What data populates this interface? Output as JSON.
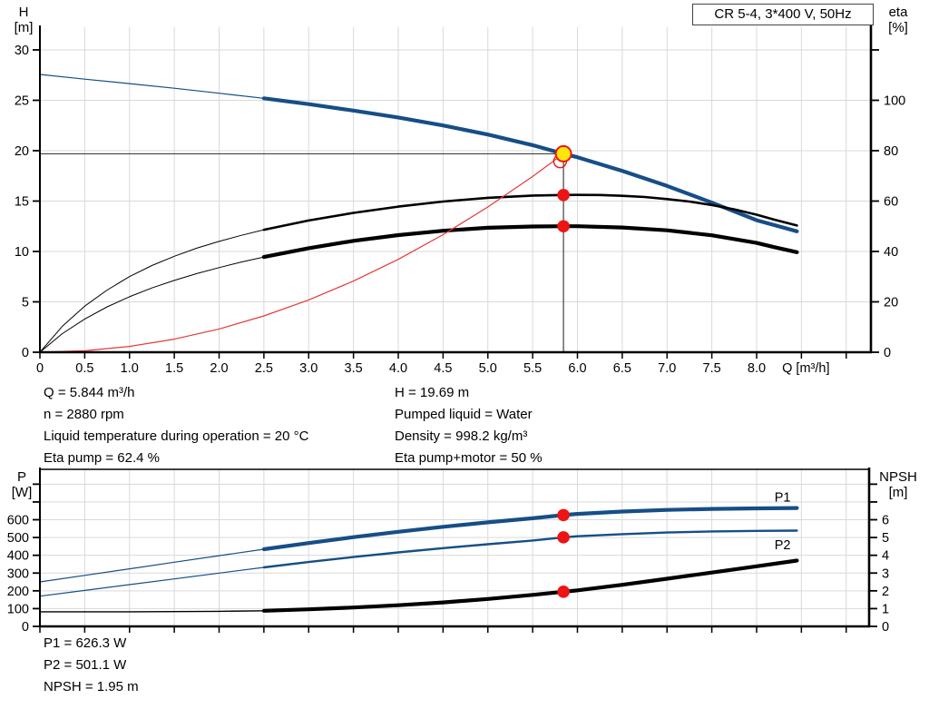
{
  "title_box": "CR 5-4, 3*400 V, 50Hz",
  "colors": {
    "blue": "#164e87",
    "black": "#000000",
    "red": "#ee1414",
    "red_curve": "#e63939",
    "yellow": "#ffe60a",
    "grid": "#d9d9d9",
    "crosshair": "#404040",
    "axis": "#000000"
  },
  "info_top_left": {
    "row1": "Q = 5.844 m³/h",
    "row2": "n = 2880 rpm",
    "row3": "Liquid temperature during operation = 20 °C",
    "row4": "Eta pump = 62.4 %"
  },
  "info_top_right": {
    "row1": "H = 19.69 m",
    "row2": "Pumped liquid = Water",
    "row3": "Density = 998.2 kg/m³",
    "row4": "Eta pump+motor = 50 %"
  },
  "info_bottom": {
    "row1": "P1 = 626.3 W",
    "row2": "P2 = 501.1 W",
    "row3": "NPSH = 1.95 m"
  },
  "chart_data": [
    {
      "type": "line",
      "title": "CR 5-4, 3*400 V, 50Hz",
      "xlabel": "Q [m³/h]",
      "ylabel_left": [
        "H",
        "[m]"
      ],
      "ylabel_right": [
        "eta",
        "[%]"
      ],
      "xlim": [
        0,
        9.276
      ],
      "ylim_left": [
        0,
        32.25
      ],
      "ylim_right": [
        0,
        129
      ],
      "x_ticks": {
        "step": 0.5,
        "max": 9.0,
        "labeled_until": 8.0,
        "show_labels": true
      },
      "left_ticks": [
        0,
        5,
        10,
        15,
        20,
        25,
        30
      ],
      "left_ticks_unlabeled": [],
      "right_ticks": [
        0,
        20,
        40,
        60,
        80,
        100
      ],
      "right_ticks_unlabeled": [
        120
      ],
      "grid": true,
      "crosshair": {
        "q": 5.844,
        "h": 19.69
      },
      "series": [
        {
          "name": "H-curve-thin",
          "axis": "left",
          "color": "blue",
          "width": 1.2,
          "points": [
            [
              0,
              27.57
            ],
            [
              0.5,
              27.1
            ],
            [
              1,
              26.66
            ],
            [
              1.5,
              26.2
            ],
            [
              2,
              25.7
            ],
            [
              2.5,
              25.2
            ]
          ]
        },
        {
          "name": "H-curve",
          "axis": "left",
          "color": "blue",
          "width": 4.2,
          "points": [
            [
              2.5,
              25.2
            ],
            [
              3,
              24.62
            ],
            [
              3.5,
              23.98
            ],
            [
              4,
              23.3
            ],
            [
              4.5,
              22.5
            ],
            [
              5,
              21.6
            ],
            [
              5.5,
              20.55
            ],
            [
              5.844,
              19.69
            ],
            [
              6,
              19.35
            ],
            [
              6.5,
              18.0
            ],
            [
              7,
              16.5
            ],
            [
              7.5,
              14.85
            ],
            [
              8,
              13.1
            ],
            [
              8.45,
              12.0
            ]
          ]
        },
        {
          "name": "eta-pump-curve-thin",
          "axis": "right",
          "color": "black",
          "width": 1,
          "points": [
            [
              0,
              0
            ],
            [
              0.25,
              10.3
            ],
            [
              0.5,
              18.3
            ],
            [
              0.75,
              24.7
            ],
            [
              1,
              30
            ],
            [
              1.25,
              34.4
            ],
            [
              1.5,
              38.1
            ],
            [
              1.75,
              41.3
            ],
            [
              2,
              44
            ],
            [
              2.25,
              46.4
            ],
            [
              2.5,
              48.6
            ]
          ]
        },
        {
          "name": "eta-pump-curve",
          "axis": "right",
          "color": "black",
          "width": 2.6,
          "points": [
            [
              2.5,
              48.6
            ],
            [
              3,
              52.3
            ],
            [
              3.5,
              55.3
            ],
            [
              4,
              57.8
            ],
            [
              4.5,
              59.8
            ],
            [
              5,
              61.3
            ],
            [
              5.5,
              62.2
            ],
            [
              5.844,
              62.4
            ],
            [
              6,
              62.45
            ],
            [
              6.25,
              62.4
            ],
            [
              6.5,
              62.1
            ],
            [
              6.75,
              61.6
            ],
            [
              7,
              60.8
            ],
            [
              7.25,
              59.8
            ],
            [
              7.5,
              58.4
            ],
            [
              7.75,
              56.7
            ],
            [
              8,
              54.6
            ],
            [
              8.2,
              52.6
            ],
            [
              8.45,
              50.3
            ]
          ]
        },
        {
          "name": "eta-pump-motor-curve-thin",
          "axis": "right",
          "color": "black",
          "width": 1,
          "points": [
            [
              0,
              0
            ],
            [
              0.25,
              7.4
            ],
            [
              0.5,
              13.2
            ],
            [
              0.75,
              18
            ],
            [
              1,
              22
            ],
            [
              1.25,
              25.5
            ],
            [
              1.5,
              28.5
            ],
            [
              1.75,
              31.2
            ],
            [
              2,
              33.6
            ],
            [
              2.25,
              35.8
            ],
            [
              2.5,
              37.8
            ]
          ]
        },
        {
          "name": "eta-pump-motor-curve",
          "axis": "right",
          "color": "black",
          "width": 4.2,
          "points": [
            [
              2.5,
              37.8
            ],
            [
              3,
              41.3
            ],
            [
              3.5,
              44.2
            ],
            [
              4,
              46.5
            ],
            [
              4.5,
              48.2
            ],
            [
              5,
              49.4
            ],
            [
              5.5,
              49.9
            ],
            [
              5.844,
              50
            ],
            [
              6,
              50
            ],
            [
              6.5,
              49.5
            ],
            [
              7,
              48.4
            ],
            [
              7.5,
              46.4
            ],
            [
              8,
              43.4
            ],
            [
              8.2,
              41.7
            ],
            [
              8.45,
              39.7
            ]
          ]
        },
        {
          "name": "system-curve",
          "axis": "left",
          "color": "red_curve",
          "width": 1.2,
          "points": [
            [
              0,
              0
            ],
            [
              0.5,
              0.14
            ],
            [
              1,
              0.58
            ],
            [
              1.5,
              1.3
            ],
            [
              2,
              2.31
            ],
            [
              2.5,
              3.6
            ],
            [
              3,
              5.19
            ],
            [
              3.5,
              7.06
            ],
            [
              4,
              9.22
            ],
            [
              4.5,
              11.67
            ],
            [
              5,
              14.41
            ],
            [
              5.5,
              17.44
            ],
            [
              5.844,
              19.69
            ]
          ]
        }
      ],
      "markers": [
        {
          "name": "duty-point-requested",
          "axis": "left",
          "q": 5.806,
          "v": 18.95,
          "r": 7,
          "fill": "none",
          "stroke": "red",
          "sw": 1.4,
          "interactable": true
        },
        {
          "name": "duty-point",
          "axis": "left",
          "q": 5.844,
          "v": 19.69,
          "r": 8.5,
          "fill": "yellow",
          "stroke": "red",
          "sw": 2,
          "interactable": true
        },
        {
          "name": "eta-pump-dot",
          "axis": "right",
          "q": 5.844,
          "v": 62.4,
          "r": 6.8,
          "fill": "red",
          "stroke": "none",
          "sw": 0,
          "interactable": false
        },
        {
          "name": "eta-pump-motor-dot",
          "axis": "right",
          "q": 5.844,
          "v": 50,
          "r": 6.8,
          "fill": "red",
          "stroke": "none",
          "sw": 0,
          "interactable": false
        }
      ],
      "labels": []
    },
    {
      "type": "line",
      "title": "",
      "xlabel": "",
      "ylabel_left": [
        "P",
        "[W]"
      ],
      "ylabel_right": [
        "NPSH",
        "[m]"
      ],
      "xlim": [
        0,
        9.256
      ],
      "ylim_left": [
        0,
        883.5
      ],
      "ylim_right": [
        0,
        8.835
      ],
      "x_ticks": {
        "step": 0.5,
        "max": 9.0,
        "labeled_until": -1,
        "show_labels": false
      },
      "left_ticks": [
        0,
        100,
        200,
        300,
        400,
        500,
        600
      ],
      "left_ticks_unlabeled": [
        700,
        800
      ],
      "right_ticks": [
        0,
        1,
        2,
        3,
        4,
        5,
        6
      ],
      "right_ticks_unlabeled": [
        7,
        8
      ],
      "grid": true,
      "crosshair": null,
      "series": [
        {
          "name": "P1-curve-thin",
          "axis": "left",
          "color": "blue",
          "width": 1.2,
          "points": [
            [
              0,
              250
            ],
            [
              0.5,
              287
            ],
            [
              1,
              324
            ],
            [
              1.5,
              361
            ],
            [
              2,
              398
            ],
            [
              2.5,
              434
            ]
          ]
        },
        {
          "name": "P1-curve",
          "axis": "left",
          "color": "blue",
          "width": 4.2,
          "points": [
            [
              2.5,
              434
            ],
            [
              3,
              469
            ],
            [
              3.5,
              502
            ],
            [
              4,
              532
            ],
            [
              4.5,
              560
            ],
            [
              5,
              585
            ],
            [
              5.5,
              608
            ],
            [
              5.844,
              626.3
            ],
            [
              6,
              633
            ],
            [
              6.5,
              646
            ],
            [
              7,
              655
            ],
            [
              7.5,
              661
            ],
            [
              8,
              664
            ],
            [
              8.45,
              666
            ]
          ]
        },
        {
          "name": "P2-curve-thin",
          "axis": "left",
          "color": "blue",
          "width": 1.2,
          "points": [
            [
              0,
              170
            ],
            [
              0.5,
              202
            ],
            [
              1,
              235
            ],
            [
              1.5,
              267
            ],
            [
              2,
              300
            ],
            [
              2.5,
              332
            ]
          ]
        },
        {
          "name": "P2-curve",
          "axis": "left",
          "color": "blue",
          "width": 2.4,
          "points": [
            [
              2.5,
              332
            ],
            [
              3,
              362
            ],
            [
              3.5,
              390
            ],
            [
              4,
              416
            ],
            [
              4.5,
              440
            ],
            [
              5,
              462
            ],
            [
              5.5,
              483
            ],
            [
              5.844,
              501.1
            ],
            [
              6,
              507
            ],
            [
              6.5,
              519
            ],
            [
              7,
              528
            ],
            [
              7.5,
              534
            ],
            [
              8,
              537
            ],
            [
              8.45,
              539
            ]
          ]
        },
        {
          "name": "NPSH-curve-thin",
          "axis": "right",
          "color": "black",
          "width": 1.4,
          "points": [
            [
              0,
              0.82
            ],
            [
              0.5,
              0.82
            ],
            [
              1,
              0.82
            ],
            [
              1.5,
              0.83
            ],
            [
              2,
              0.85
            ],
            [
              2.5,
              0.88
            ]
          ]
        },
        {
          "name": "NPSH-curve",
          "axis": "right",
          "color": "black",
          "width": 4.2,
          "points": [
            [
              2.5,
              0.88
            ],
            [
              3,
              0.96
            ],
            [
              3.5,
              1.06
            ],
            [
              4,
              1.19
            ],
            [
              4.5,
              1.35
            ],
            [
              5,
              1.54
            ],
            [
              5.5,
              1.77
            ],
            [
              5.844,
              1.95
            ],
            [
              6,
              2.03
            ],
            [
              6.5,
              2.34
            ],
            [
              7,
              2.68
            ],
            [
              7.5,
              3.03
            ],
            [
              8,
              3.38
            ],
            [
              8.45,
              3.7
            ]
          ]
        }
      ],
      "markers": [
        {
          "name": "p1-dot",
          "axis": "left",
          "q": 5.844,
          "v": 626.3,
          "r": 6.8,
          "fill": "red",
          "stroke": "none",
          "sw": 0,
          "interactable": false
        },
        {
          "name": "p2-dot",
          "axis": "left",
          "q": 5.844,
          "v": 501.1,
          "r": 6.8,
          "fill": "red",
          "stroke": "none",
          "sw": 0,
          "interactable": false
        },
        {
          "name": "npsh-dot",
          "axis": "right",
          "q": 5.844,
          "v": 1.95,
          "r": 6.8,
          "fill": "red",
          "stroke": "none",
          "sw": 0,
          "interactable": false
        }
      ],
      "labels": [
        {
          "text": "P1",
          "axis": "left",
          "q": 8.2,
          "v": 728,
          "color": "blue"
        },
        {
          "text": "P2",
          "axis": "left",
          "q": 8.2,
          "v": 460,
          "color": "blue"
        }
      ]
    }
  ]
}
